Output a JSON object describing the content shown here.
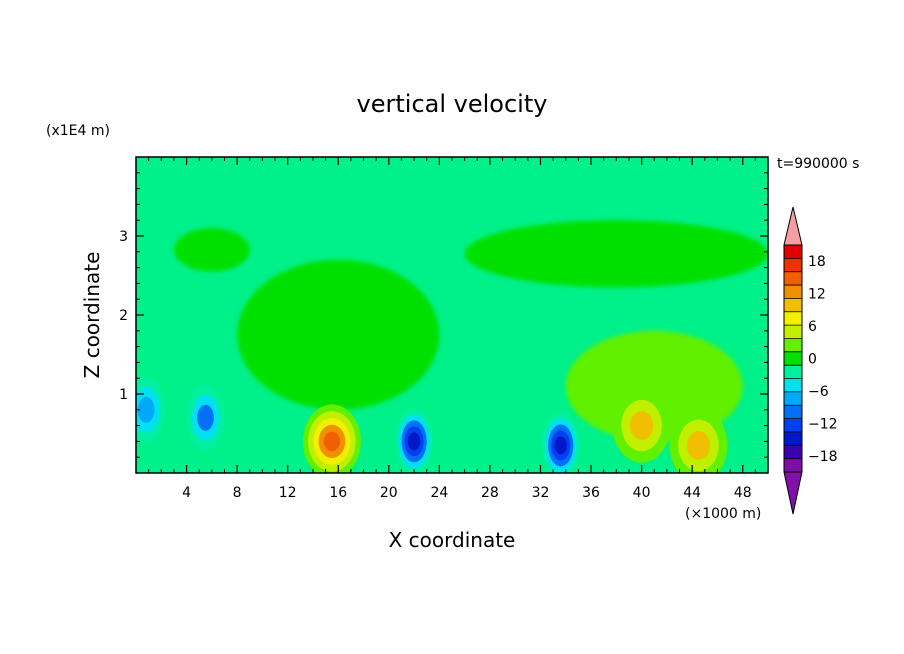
{
  "chart_data": {
    "type": "heatmap",
    "title": "vertical velocity",
    "xlabel": "X coordinate",
    "ylabel": "Z coordinate",
    "x_unit": "(×1000 m)",
    "y_unit": "(x1E4 m)",
    "time_label": "t=990000 s",
    "xlim": [
      0,
      50
    ],
    "ylim": [
      0,
      4
    ],
    "x_ticks": [
      4,
      8,
      12,
      16,
      20,
      24,
      28,
      32,
      36,
      40,
      44,
      48
    ],
    "y_ticks": [
      1,
      2,
      3
    ],
    "colorbar": {
      "range": [
        -21,
        21
      ],
      "ticks": [
        18,
        12,
        6,
        0,
        -6,
        -12,
        -18
      ],
      "level_colors": [
        "#7b0fa8",
        "#3a00b0",
        "#0018c8",
        "#0040f0",
        "#0070f8",
        "#00a8f8",
        "#00e0f0",
        "#00f0a0",
        "#00e000",
        "#60f000",
        "#c0f000",
        "#f0f000",
        "#f0c000",
        "#f09000",
        "#f06000",
        "#f03000",
        "#e00000"
      ],
      "over_color": "#f4a0a0",
      "under_color": "#8010a8"
    },
    "background_level_color": "#00f08a",
    "features": [
      {
        "kind": "region",
        "level": 0,
        "x": [
          3,
          9
        ],
        "z": [
          2.55,
          3.1
        ]
      },
      {
        "kind": "region",
        "level": 0,
        "x": [
          8,
          24
        ],
        "z": [
          0.8,
          2.7
        ]
      },
      {
        "kind": "region",
        "level": 0,
        "x": [
          26,
          50
        ],
        "z": [
          2.35,
          3.2
        ]
      },
      {
        "kind": "region",
        "level": 3,
        "x": [
          34,
          48
        ],
        "z": [
          0.4,
          1.8
        ]
      },
      {
        "kind": "updraft",
        "x": 15.5,
        "z": 0.4,
        "peak": 15
      },
      {
        "kind": "updraft",
        "x": 40,
        "z": 0.6,
        "peak": 10
      },
      {
        "kind": "updraft",
        "x": 44.5,
        "z": 0.35,
        "peak": 10
      },
      {
        "kind": "downdraft",
        "x": 22,
        "z": 0.4,
        "peak": -16
      },
      {
        "kind": "downdraft",
        "x": 33.6,
        "z": 0.35,
        "peak": -16
      },
      {
        "kind": "downdraft",
        "x": 5.5,
        "z": 0.7,
        "peak": -9
      },
      {
        "kind": "downdraft",
        "x": 0.8,
        "z": 0.8,
        "peak": -8
      }
    ]
  }
}
